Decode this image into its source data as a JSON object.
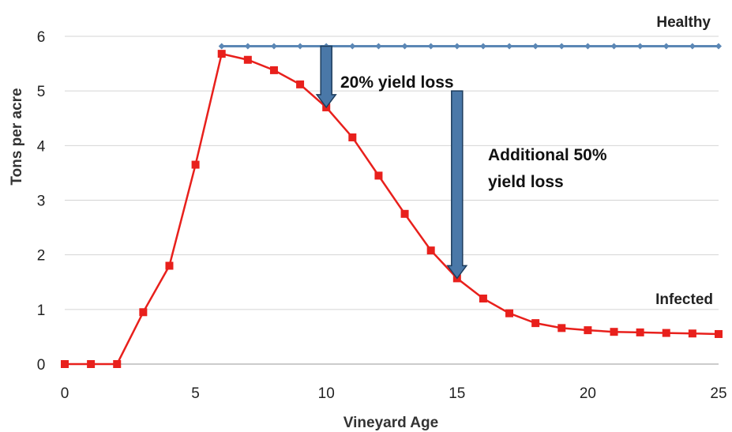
{
  "chart_data": {
    "type": "line",
    "title": "",
    "xlabel": "Vineyard Age",
    "ylabel": "Tons per acre",
    "xlim": [
      0,
      25
    ],
    "ylim": [
      0,
      6
    ],
    "xticks": [
      0,
      5,
      10,
      15,
      20,
      25
    ],
    "yticks": [
      0,
      1,
      2,
      3,
      4,
      5,
      6
    ],
    "grid": "horizontal",
    "series": [
      {
        "name": "Healthy",
        "color": "#5b87b5",
        "marker": "diamond",
        "x": [
          6,
          7,
          8,
          9,
          10,
          11,
          12,
          13,
          14,
          15,
          16,
          17,
          18,
          19,
          20,
          21,
          22,
          23,
          24,
          25
        ],
        "y": [
          5.82,
          5.82,
          5.82,
          5.82,
          5.82,
          5.82,
          5.82,
          5.82,
          5.82,
          5.82,
          5.82,
          5.82,
          5.82,
          5.82,
          5.82,
          5.82,
          5.82,
          5.82,
          5.82,
          5.82
        ]
      },
      {
        "name": "Infected",
        "color": "#e8201c",
        "marker": "square",
        "x": [
          0,
          1,
          2,
          3,
          4,
          5,
          6,
          7,
          8,
          9,
          10,
          11,
          12,
          13,
          14,
          15,
          16,
          17,
          18,
          19,
          20,
          21,
          22,
          23,
          24,
          25
        ],
        "y": [
          0,
          0,
          0,
          0.95,
          1.8,
          3.65,
          5.68,
          5.57,
          5.38,
          5.12,
          4.7,
          4.15,
          3.45,
          2.75,
          2.08,
          1.57,
          1.2,
          0.93,
          0.75,
          0.66,
          0.62,
          0.59,
          0.58,
          0.57,
          0.56,
          0.55
        ]
      }
    ],
    "annotations": [
      {
        "text": "20% yield loss",
        "from": [
          10,
          5.82
        ],
        "to": [
          10,
          4.7
        ]
      },
      {
        "text": "Additional 50% yield loss",
        "from": [
          15,
          5.0
        ],
        "to": [
          15,
          1.57
        ]
      }
    ]
  }
}
